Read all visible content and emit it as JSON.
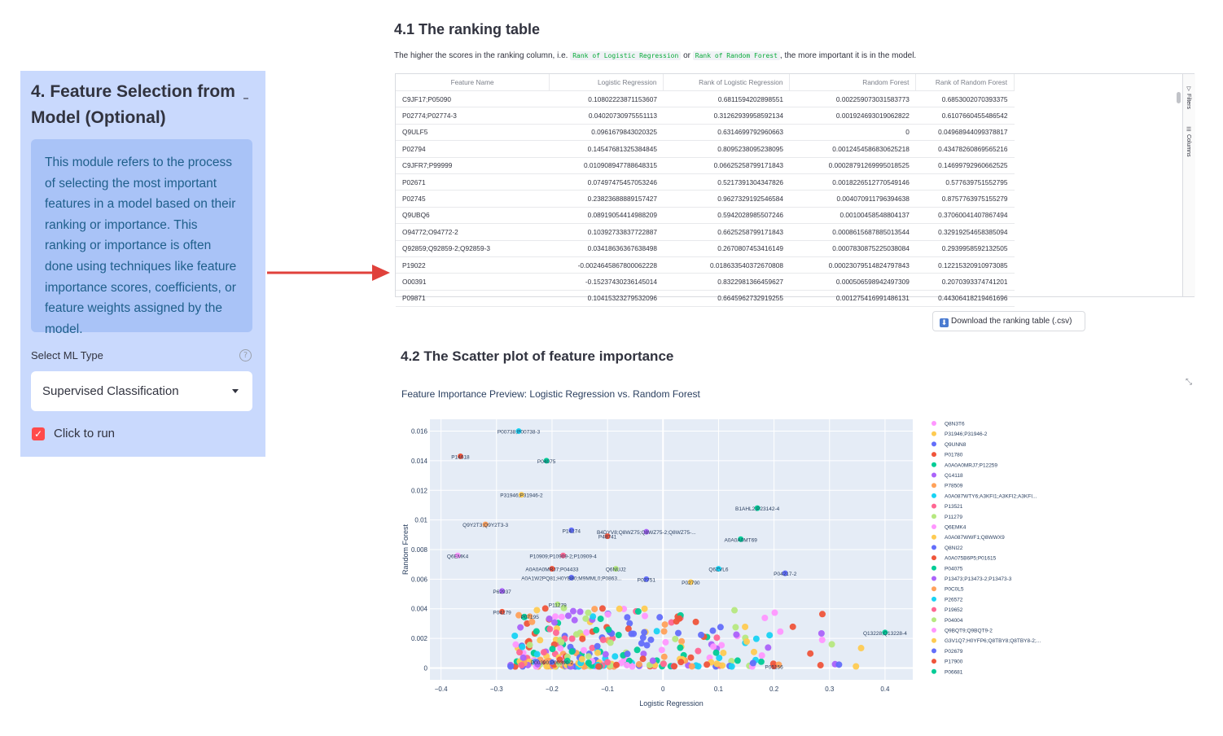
{
  "sidebar": {
    "title": "4. Feature Selection from Model (Optional)",
    "collapse_icon": "minus-icon",
    "info_text": "This module refers to the process of selecting the most important features in a model based on their ranking or importance. This ranking or importance is often done using techniques like feature importance scores, coefficients, or feature weights assigned by the model.",
    "select_label": "Select ML Type",
    "select_value": "Supervised Classification",
    "checkbox_label": "Click to run",
    "checkbox_checked": true,
    "bg_color": "#c9d9fd",
    "info_color": "#a9c3f7",
    "accent": "#ff4b4b"
  },
  "ranking": {
    "heading": "4.1 The ranking table",
    "desc_prefix": "The higher the scores in the ranking column, i.e.",
    "code1": "Rank of Logistic Regression",
    "desc_or": "or",
    "code2": "Rank of Random Forest",
    "desc_suffix": ", the more important it is in the model.",
    "columns": [
      "Feature Name",
      "Logistic Regression",
      "Rank of Logistic Regression",
      "Random Forest",
      "Rank of Random Forest"
    ],
    "rows": [
      [
        "C9JF17;P05090",
        "0.10802223871153607",
        "0.6811594202898551",
        "0.002259073031583773",
        "0.6853002070393375"
      ],
      [
        "P02774;P02774-3",
        "0.04020730975551113",
        "0.31262939958592134",
        "0.001924693019062822",
        "0.6107660455486542"
      ],
      [
        "Q9ULF5",
        "0.0961679843020325",
        "0.6314699792960663",
        "0",
        "0.04968944099378817"
      ],
      [
        "P02794",
        "0.14547681325384845",
        "0.8095238095238095",
        "0.0012454586830625218",
        "0.43478260869565216"
      ],
      [
        "C9JFR7;P99999",
        "0.010908947788648315",
        "0.06625258799171843",
        "0.00028791269995018525",
        "0.14699792960662525"
      ],
      [
        "P02671",
        "0.07497475457053246",
        "0.5217391304347826",
        "0.0018226512770549146",
        "0.577639751552795"
      ],
      [
        "P02745",
        "0.23823688889157427",
        "0.9627329192546584",
        "0.004070911796394638",
        "0.8757763975155279"
      ],
      [
        "Q9UBQ6",
        "0.08919054414988209",
        "0.5942028985507246",
        "0.00100458548804137",
        "0.37060041407867494"
      ],
      [
        "O94772;O94772-2",
        "0.10392733837722887",
        "0.6625258799171843",
        "0.0008615687885013544",
        "0.32919254658385094"
      ],
      [
        "Q92859;Q92859-2;Q92859-3",
        "0.03418636367638498",
        "0.2670807453416149",
        "0.0007830875225038084",
        "0.2939958592132505"
      ],
      [
        "P19022",
        "-0.0024645867800062228",
        "0.018633540372670808",
        "0.00023079514824797843",
        "0.12215320910973085"
      ],
      [
        "O00391",
        "-0.15237430236145014",
        "0.8322981366459627",
        "0.000506598942497309",
        "0.2070393374741201"
      ],
      [
        "P09871",
        "0.10415323279532096",
        "0.6645962732919255",
        "0.0012754169914861​31",
        "0.44306418219461696"
      ]
    ],
    "filters_label": "Filters",
    "columns_label": "Columns",
    "filters_icon": "filter-icon",
    "columns_icon": "columns-icon",
    "download_label": "Download the ranking table (.csv)",
    "download_icon": "download-icon"
  },
  "scatter": {
    "heading": "4.2 The Scatter plot of feature importance",
    "fullscreen_icon": "fullscreen-icon"
  },
  "chart_data": {
    "type": "scatter",
    "title": "Feature Importance Preview: Logistic Regression vs. Random Forest",
    "xlabel": "Logistic Regression",
    "ylabel": "Random Forest",
    "xlim": [
      -0.42,
      0.45
    ],
    "ylim": [
      -0.0008,
      0.0168
    ],
    "x_ticks": [
      -0.4,
      -0.3,
      -0.2,
      -0.1,
      0,
      0.1,
      0.2,
      0.3,
      0.4
    ],
    "x_tick_labels": [
      "−0.4",
      "−0.3",
      "−0.2",
      "−0.1",
      "0",
      "0.1",
      "0.2",
      "0.3",
      "0.4"
    ],
    "y_ticks": [
      0,
      0.002,
      0.004,
      0.006,
      0.008,
      0.01,
      0.012,
      0.014,
      0.016
    ],
    "y_tick_labels": [
      "0",
      "0.002",
      "0.004",
      "0.006",
      "0.008",
      "0.01",
      "0.012",
      "0.014",
      "0.016"
    ],
    "grid": true,
    "legend_position": "right",
    "plot_bg": "#e5ecf6",
    "labeled_points": [
      {
        "name": "P00738;P00738-3",
        "x": -0.26,
        "y": 0.016,
        "color": "#19d3f3"
      },
      {
        "name": "P14618",
        "x": -0.365,
        "y": 0.0143,
        "color": "#ef553b"
      },
      {
        "name": "P04075",
        "x": -0.21,
        "y": 0.014,
        "color": "#00cc96"
      },
      {
        "name": "P31946;P31946-2",
        "x": -0.255,
        "y": 0.0117,
        "color": "#fecb52"
      },
      {
        "name": "B1AHL2;P23142-4",
        "x": 0.17,
        "y": 0.0108,
        "color": "#00cc96"
      },
      {
        "name": "Q9Y2T3;Q9Y2T3-3",
        "x": -0.32,
        "y": 0.0097,
        "color": "#ffa15a"
      },
      {
        "name": "P14174",
        "x": -0.165,
        "y": 0.0093,
        "color": "#636efa"
      },
      {
        "name": "B4DYV8;Q8WZ75;Q8WZ75-2;Q8WZ75-...",
        "x": -0.03,
        "y": 0.0092,
        "color": "#ab63fa"
      },
      {
        "name": "P48741",
        "x": -0.1,
        "y": 0.0089,
        "color": "#ef553b"
      },
      {
        "name": "A0A0A0MT69",
        "x": 0.14,
        "y": 0.0087,
        "color": "#00cc96"
      },
      {
        "name": "Q6EMK4",
        "x": -0.37,
        "y": 0.0076,
        "color": "#ff97ff"
      },
      {
        "name": "P10909;P10909-2;P10909-4",
        "x": -0.18,
        "y": 0.0076,
        "color": "#ff6692"
      },
      {
        "name": "A0A0A0MRJ7;P04433",
        "x": -0.2,
        "y": 0.0067,
        "color": "#ef553b"
      },
      {
        "name": "Q6NUJ2",
        "x": -0.085,
        "y": 0.0067,
        "color": "#b6e880"
      },
      {
        "name": "A0A1W2PQ81;H0YB80;M9MML0;P0863...",
        "x": -0.165,
        "y": 0.0061,
        "color": "#636efa"
      },
      {
        "name": "Q6ZVL6",
        "x": 0.1,
        "y": 0.0067,
        "color": "#19d3f3"
      },
      {
        "name": "P04217-2",
        "x": 0.22,
        "y": 0.0064,
        "color": "#636efa"
      },
      {
        "name": "P02751",
        "x": -0.03,
        "y": 0.006,
        "color": "#636efa"
      },
      {
        "name": "P02790",
        "x": 0.05,
        "y": 0.0058,
        "color": "#fecb52"
      },
      {
        "name": "P62937",
        "x": -0.29,
        "y": 0.0052,
        "color": "#ab63fa"
      },
      {
        "name": "P11279",
        "x": -0.19,
        "y": 0.0043,
        "color": "#b6e880"
      },
      {
        "name": "P04179",
        "x": -0.29,
        "y": 0.0038,
        "color": "#ef553b"
      },
      {
        "name": "P07195",
        "x": -0.24,
        "y": 0.0035,
        "color": "#ffa15a"
      },
      {
        "name": "Q13228;Q13228-4",
        "x": 0.4,
        "y": 0.0024,
        "color": "#00cc96"
      },
      {
        "name": "P05156",
        "x": 0.2,
        "y": 0.0001,
        "color": "#ef553b"
      },
      {
        "name": "P00390;P00390-2",
        "x": -0.2,
        "y": 0.0004,
        "color": "#636efa"
      }
    ],
    "legend": [
      {
        "name": "Q8N3T6",
        "color": "#ff97ff"
      },
      {
        "name": "P31946;P31946-2",
        "color": "#fecb52"
      },
      {
        "name": "Q9UNN8",
        "color": "#636efa"
      },
      {
        "name": "P01780",
        "color": "#ef553b"
      },
      {
        "name": "A0A0A0MRJ7;P12259",
        "color": "#00cc96"
      },
      {
        "name": "Q14118",
        "color": "#ab63fa"
      },
      {
        "name": "P78509",
        "color": "#ffa15a"
      },
      {
        "name": "A0A087WTY6;A3KFI1;A3KFI2;A3KFI...",
        "color": "#19d3f3"
      },
      {
        "name": "P13521",
        "color": "#ff6692"
      },
      {
        "name": "P11279",
        "color": "#b6e880"
      },
      {
        "name": "Q6EMK4",
        "color": "#ff97ff"
      },
      {
        "name": "A0A087WWF1;Q8WWX9",
        "color": "#fecb52"
      },
      {
        "name": "Q8NI22",
        "color": "#636efa"
      },
      {
        "name": "A0A075B6P5;P01615",
        "color": "#ef553b"
      },
      {
        "name": "P04075",
        "color": "#00cc96"
      },
      {
        "name": "P13473;P13473-2;P13473-3",
        "color": "#ab63fa"
      },
      {
        "name": "P0C0L5",
        "color": "#ffa15a"
      },
      {
        "name": "P26572",
        "color": "#19d3f3"
      },
      {
        "name": "P19652",
        "color": "#ff6692"
      },
      {
        "name": "P04004",
        "color": "#b6e880"
      },
      {
        "name": "Q9BQT9;Q9BQT9-2",
        "color": "#ff97ff"
      },
      {
        "name": "G3V1Q7;H0YFP6;Q8TBY8;Q8TBY8-2;...",
        "color": "#fecb52"
      },
      {
        "name": "P02679",
        "color": "#636efa"
      },
      {
        "name": "P17900",
        "color": "#ef553b"
      },
      {
        "name": "P06681",
        "color": "#00cc96"
      }
    ]
  }
}
